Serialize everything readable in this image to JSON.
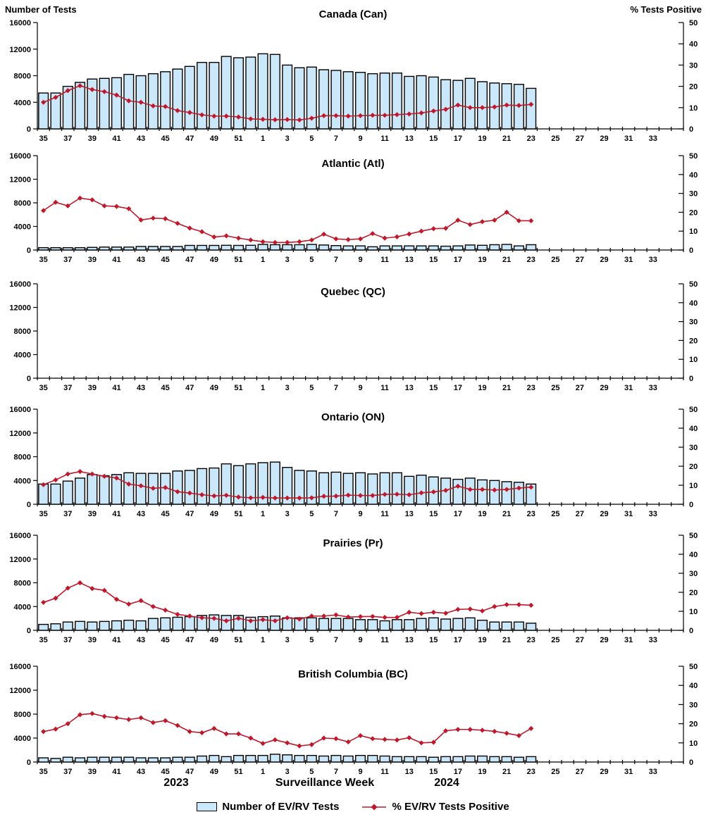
{
  "header": {
    "left_axis_title": "Number of Tests",
    "right_axis_title": "% Tests Positive"
  },
  "x_axis": {
    "year_left": "2023",
    "axis_title": "Surveillance Week",
    "year_right": "2024"
  },
  "legend": {
    "bars_label": "Number of EV/RV Tests",
    "line_label": "% EV/RV Tests Positive"
  },
  "colors": {
    "bar_fill": "#CBE7FA",
    "bar_stroke": "#000000",
    "line": "#C0182B"
  },
  "chart_data": {
    "type": "bar+line multi-panel",
    "left_ylabel": "Number of Tests",
    "right_ylabel": "% Tests Positive",
    "left_ylim": [
      0,
      16000
    ],
    "right_ylim": [
      0,
      50
    ],
    "left_ticks": [
      "0",
      "4000",
      "8000",
      "12000",
      "16000"
    ],
    "right_ticks": [
      "0",
      "10",
      "20",
      "30",
      "40",
      "50"
    ],
    "x_tick_labels": [
      "35",
      "37",
      "39",
      "41",
      "43",
      "45",
      "47",
      "49",
      "51",
      "1",
      "3",
      "5",
      "7",
      "9",
      "11",
      "13",
      "15",
      "17",
      "19",
      "21",
      "23",
      "25",
      "27",
      "29",
      "31",
      "33"
    ],
    "weeks": [
      35,
      36,
      37,
      38,
      39,
      40,
      41,
      42,
      43,
      44,
      45,
      46,
      47,
      48,
      49,
      50,
      51,
      52,
      1,
      2,
      3,
      4,
      5,
      6,
      7,
      8,
      9,
      10,
      11,
      12,
      13,
      14,
      15,
      16,
      17,
      18,
      19,
      20,
      21,
      22,
      23
    ],
    "grid": false,
    "panels": [
      {
        "id": "canada",
        "title": "Canada (Can)",
        "tests": [
          5400,
          5400,
          6400,
          7000,
          7500,
          7600,
          7700,
          8200,
          8000,
          8300,
          8600,
          9000,
          9400,
          10000,
          10000,
          10900,
          10700,
          10800,
          11300,
          11200,
          9600,
          9200,
          9300,
          8900,
          8800,
          8600,
          8500,
          8300,
          8400,
          8400,
          7900,
          8000,
          7800,
          7400,
          7300,
          7600,
          7100,
          6900,
          6800,
          6700,
          6100
        ],
        "pct_positive": [
          12.5,
          14.8,
          18.0,
          20.3,
          18.5,
          17.5,
          15.9,
          13.2,
          12.5,
          10.8,
          10.5,
          8.6,
          7.7,
          6.6,
          6.0,
          6.0,
          5.6,
          4.7,
          4.5,
          4.3,
          4.4,
          4.2,
          5.0,
          6.2,
          6.2,
          6.0,
          6.2,
          6.4,
          6.4,
          6.7,
          7.0,
          7.5,
          8.4,
          9.2,
          11.2,
          10.0,
          10.0,
          10.3,
          11.2,
          11.0,
          11.5
        ]
      },
      {
        "id": "atlantic",
        "title": "Atlantic (Atl)",
        "tests": [
          400,
          400,
          400,
          400,
          450,
          500,
          500,
          500,
          600,
          600,
          600,
          600,
          780,
          780,
          780,
          800,
          780,
          800,
          950,
          900,
          900,
          900,
          950,
          850,
          750,
          700,
          700,
          550,
          700,
          700,
          700,
          700,
          700,
          650,
          700,
          850,
          800,
          900,
          950,
          700,
          900
        ],
        "pct_positive": [
          20.9,
          25.3,
          23.4,
          27.5,
          26.6,
          23.4,
          23.1,
          21.9,
          15.9,
          16.9,
          16.6,
          14.1,
          11.6,
          9.7,
          6.9,
          7.5,
          6.3,
          5.3,
          4.4,
          4.0,
          4.0,
          4.4,
          5.3,
          8.4,
          5.9,
          5.5,
          5.9,
          8.7,
          6.3,
          7.0,
          8.5,
          10.0,
          11.3,
          11.5,
          15.8,
          13.5,
          15.0,
          15.8,
          20.0,
          15.5,
          15.5
        ]
      },
      {
        "id": "quebec",
        "title": "Quebec (QC)",
        "tests": [],
        "pct_positive": []
      },
      {
        "id": "ontario",
        "title": "Ontario (ON)",
        "tests": [
          3400,
          3400,
          3900,
          4400,
          5000,
          4800,
          5000,
          5300,
          5200,
          5200,
          5200,
          5600,
          5700,
          6000,
          6100,
          6800,
          6500,
          6800,
          7000,
          7100,
          6200,
          5700,
          5600,
          5300,
          5400,
          5200,
          5300,
          5100,
          5300,
          5300,
          4700,
          4900,
          4600,
          4400,
          4200,
          4400,
          4100,
          4000,
          3800,
          3700,
          3400
        ],
        "pct_positive": [
          10.3,
          12.8,
          15.9,
          17.2,
          15.9,
          14.7,
          13.8,
          10.6,
          9.7,
          8.4,
          8.8,
          6.6,
          5.9,
          5.0,
          4.4,
          4.7,
          3.8,
          3.4,
          3.6,
          3.3,
          3.3,
          3.3,
          3.4,
          4.2,
          4.3,
          4.8,
          4.6,
          4.6,
          5.2,
          5.3,
          5.0,
          6.0,
          6.5,
          7.3,
          9.5,
          7.8,
          7.8,
          7.5,
          7.8,
          8.5,
          9.0
        ]
      },
      {
        "id": "prairies",
        "title": "Prairies (Pr)",
        "tests": [
          1000,
          1100,
          1400,
          1500,
          1400,
          1500,
          1600,
          1700,
          1600,
          2000,
          2100,
          2200,
          2300,
          2500,
          2600,
          2500,
          2500,
          2200,
          2300,
          2400,
          2100,
          2100,
          2100,
          2000,
          2000,
          2000,
          1800,
          1800,
          1600,
          1800,
          1800,
          2000,
          2100,
          1900,
          2000,
          2100,
          1700,
          1400,
          1400,
          1400,
          1200
        ],
        "pct_positive": [
          14.7,
          16.9,
          22.2,
          25.0,
          22.0,
          21.0,
          16.3,
          13.8,
          15.6,
          12.5,
          10.6,
          8.4,
          7.5,
          6.6,
          6.3,
          5.0,
          6.3,
          5.0,
          5.6,
          5.0,
          6.6,
          5.9,
          7.5,
          7.5,
          8.1,
          7.0,
          7.2,
          7.3,
          6.8,
          6.8,
          9.5,
          8.8,
          9.5,
          9.0,
          11.0,
          11.2,
          10.2,
          12.5,
          13.5,
          13.5,
          13.2
        ]
      },
      {
        "id": "british-columbia",
        "title": "British Columbia (BC)",
        "tests": [
          700,
          600,
          800,
          700,
          800,
          800,
          800,
          800,
          700,
          700,
          700,
          800,
          800,
          1000,
          1100,
          900,
          1100,
          1100,
          1100,
          1300,
          1200,
          1100,
          1100,
          1000,
          1100,
          1000,
          1100,
          1100,
          1000,
          900,
          900,
          900,
          800,
          900,
          900,
          1000,
          1000,
          900,
          900,
          800,
          900
        ],
        "pct_positive": [
          15.9,
          17.2,
          20.0,
          24.7,
          25.3,
          23.8,
          23.1,
          22.2,
          23.1,
          20.6,
          21.6,
          19.1,
          15.9,
          15.3,
          17.5,
          14.7,
          14.7,
          12.5,
          9.7,
          11.6,
          10.0,
          8.4,
          9.1,
          12.5,
          12.2,
          10.5,
          13.8,
          12.2,
          11.8,
          11.5,
          12.7,
          10.0,
          10.3,
          16.3,
          17.0,
          17.0,
          16.6,
          16.0,
          15.0,
          13.8,
          17.5
        ]
      }
    ]
  }
}
